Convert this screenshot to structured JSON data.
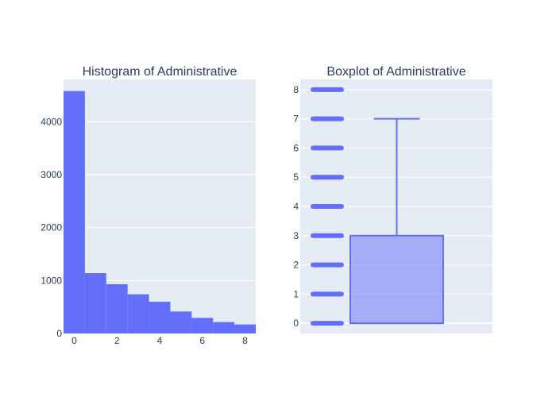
{
  "chart_data": [
    {
      "type": "bar",
      "title": "Histogram of Administrative",
      "xlabel": "",
      "ylabel": "",
      "bins": [
        {
          "x0": 0,
          "x1": 1,
          "count": 4580
        },
        {
          "x0": 1,
          "x1": 2,
          "count": 1140
        },
        {
          "x0": 2,
          "x1": 3,
          "count": 930
        },
        {
          "x0": 3,
          "x1": 4,
          "count": 740
        },
        {
          "x0": 4,
          "x1": 5,
          "count": 600
        },
        {
          "x0": 5,
          "x1": 6,
          "count": 415
        },
        {
          "x0": 6,
          "x1": 7,
          "count": 295
        },
        {
          "x0": 7,
          "x1": 8,
          "count": 215
        },
        {
          "x0": 8,
          "x1": 9,
          "count": 170
        }
      ],
      "xlim": [
        -0.5,
        8.5
      ],
      "ylim": [
        0,
        4800
      ],
      "x_ticks": [
        0,
        2,
        4,
        6,
        8
      ],
      "y_ticks": [
        0,
        1000,
        2000,
        3000,
        4000
      ],
      "grid": true,
      "color": "#636efa"
    },
    {
      "type": "box",
      "title": "Boxplot of Administrative",
      "xlabel": "",
      "ylabel": "",
      "q1": 0,
      "median": 0,
      "q3": 3,
      "lower_whisker": 0,
      "upper_whisker": 7,
      "points": [
        0,
        1,
        2,
        3,
        4,
        5,
        6,
        7,
        8
      ],
      "ylim": [
        -0.35,
        8.35
      ],
      "y_ticks": [
        0,
        1,
        2,
        3,
        4,
        5,
        6,
        7,
        8
      ],
      "grid": true,
      "color": "#636efa"
    }
  ]
}
